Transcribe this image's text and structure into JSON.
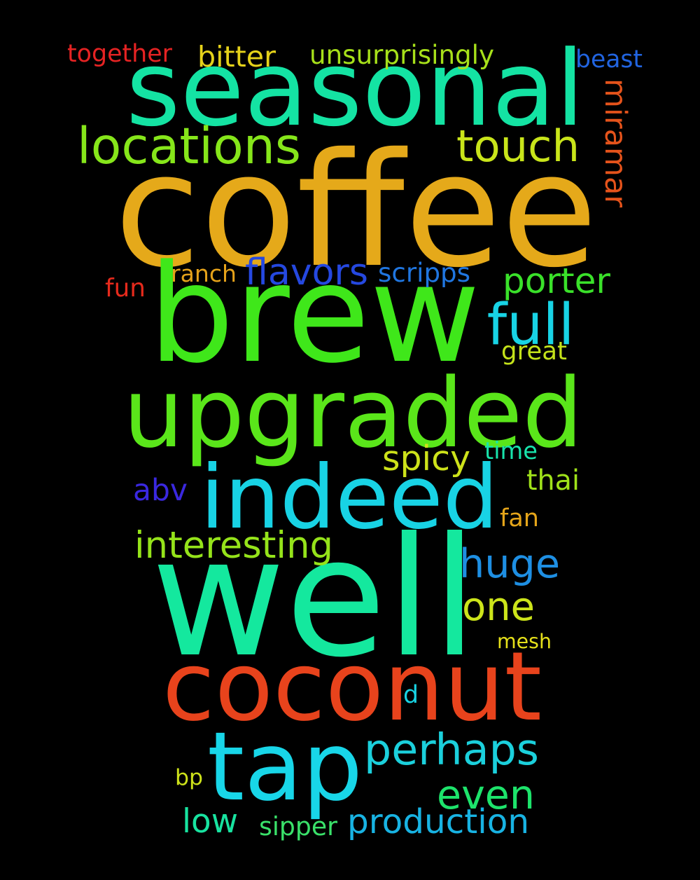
{
  "words": [
    {
      "text": "coffee",
      "color": "#E5A91A"
    },
    {
      "text": "brew",
      "color": "#3FE71A"
    },
    {
      "text": "well",
      "color": "#14E89E"
    },
    {
      "text": "seasonal",
      "color": "#14E3A3"
    },
    {
      "text": "upgraded",
      "color": "#5AE61A"
    },
    {
      "text": "indeed",
      "color": "#18D3E5"
    },
    {
      "text": "coconut",
      "color": "#E8431C"
    },
    {
      "text": "tap",
      "color": "#18D6E8"
    },
    {
      "text": "locations",
      "color": "#86E61A"
    },
    {
      "text": "touch",
      "color": "#C9E51A"
    },
    {
      "text": "full",
      "color": "#18D3E5"
    },
    {
      "text": "huge",
      "color": "#1E8FE3"
    },
    {
      "text": "one",
      "color": "#CCE41A"
    },
    {
      "text": "perhaps",
      "color": "#1BD0DC"
    },
    {
      "text": "even",
      "color": "#1DE36B"
    },
    {
      "text": "production",
      "color": "#18B3E3"
    },
    {
      "text": "interesting",
      "color": "#95E31A"
    },
    {
      "text": "flavors",
      "color": "#2548E0"
    },
    {
      "text": "porter",
      "color": "#3AE12A"
    },
    {
      "text": "spicy",
      "color": "#CDE21A"
    },
    {
      "text": "miramar",
      "color": "#E5531B"
    },
    {
      "text": "abv",
      "color": "#3A28E0"
    },
    {
      "text": "low",
      "color": "#18E3A0"
    },
    {
      "text": "unsurprisingly",
      "color": "#A7E01A"
    },
    {
      "text": "together",
      "color": "#E52323"
    },
    {
      "text": "bitter",
      "color": "#E5D21A"
    },
    {
      "text": "beast",
      "color": "#2164E0"
    },
    {
      "text": "ranch",
      "color": "#E5A21A"
    },
    {
      "text": "scripps",
      "color": "#2076E0"
    },
    {
      "text": "fun",
      "color": "#E52A1C"
    },
    {
      "text": "great",
      "color": "#C4E21A"
    },
    {
      "text": "time",
      "color": "#18E3AB"
    },
    {
      "text": "thai",
      "color": "#9FE21A"
    },
    {
      "text": "fan",
      "color": "#E5A51A"
    },
    {
      "text": "mesh",
      "color": "#E5E01A"
    },
    {
      "text": "d",
      "color": "#18D3E3"
    },
    {
      "text": "bp",
      "color": "#CDE21A"
    },
    {
      "text": "sipper",
      "color": "#3AE16A"
    }
  ]
}
